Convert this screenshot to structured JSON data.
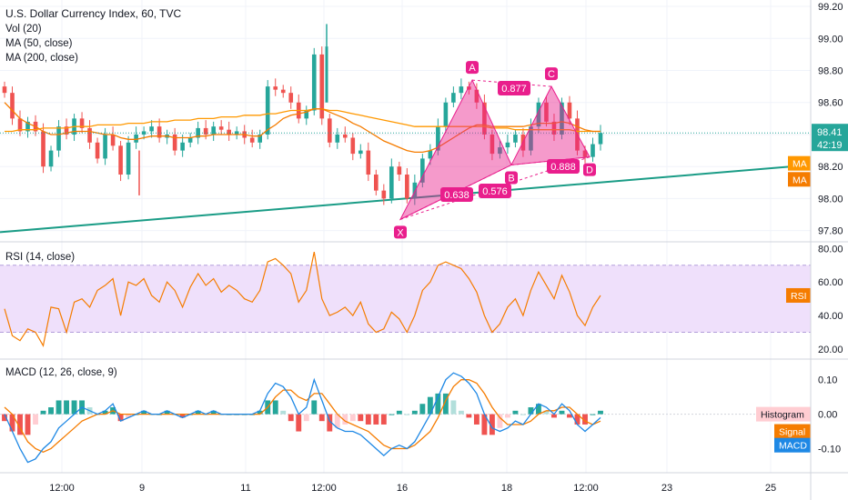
{
  "legend": {
    "symbol": "U.S. Dollar Currency Index, 60, TVC",
    "vol": "Vol (20)",
    "ma50": "MA (50, close)",
    "ma200": "MA (200, close)",
    "rsi": "RSI (14, close)",
    "macd": "MACD (12, 26, close, 9)"
  },
  "price_axis": {
    "ticks": [
      "99.20",
      "99.00",
      "98.80",
      "98.60",
      "98.40",
      "98.20",
      "98.00",
      "97.80"
    ],
    "last_price": "98.41",
    "countdown": "42:19",
    "ma_tags": [
      "MA",
      "MA"
    ]
  },
  "rsi_axis": {
    "ticks": [
      "80.00",
      "60.00",
      "40.00",
      "20.00"
    ],
    "tag": "RSI"
  },
  "macd_axis": {
    "ticks": [
      "0.10",
      "0.00",
      "-0.10"
    ],
    "tags": {
      "histogram": "Histogram",
      "signal": "Signal",
      "macd": "MACD"
    }
  },
  "time_axis": [
    "12:00",
    "9",
    "11",
    "12:00",
    "16",
    "18",
    "12:00",
    "23",
    "25"
  ],
  "pattern": {
    "points": [
      {
        "label": "X",
        "value": 97.87
      },
      {
        "label": "A",
        "value": 98.74
      },
      {
        "label": "B",
        "value": 98.21
      },
      {
        "label": "C",
        "value": 98.7
      },
      {
        "label": "D",
        "value": 98.26
      }
    ],
    "ratios": [
      "0.638",
      "0.576",
      "0.877",
      "0.888"
    ]
  },
  "colors": {
    "up": "#26a69a",
    "down": "#ef5350",
    "ma50": "#f57c00",
    "ma200": "#ff9800",
    "pattern": "#e91e8c",
    "trend": "#1a9c86",
    "rsi": "#f57c00",
    "rsi_band": "#efe0fb",
    "macd": "#1e88e5",
    "signal": "#f57c00",
    "last": "#26a69a"
  },
  "chart_data": {
    "type": "line",
    "title": "U.S. Dollar Currency Index, 60, TVC",
    "price_range": [
      97.73,
      99.24
    ],
    "rsi_range": [
      14,
      84
    ],
    "macd_range": [
      -0.17,
      0.16
    ],
    "close": [
      98.66,
      98.5,
      98.42,
      98.48,
      98.42,
      98.2,
      98.3,
      98.45,
      98.4,
      98.5,
      98.44,
      98.35,
      98.25,
      98.4,
      98.33,
      98.15,
      98.35,
      98.4,
      98.42,
      98.45,
      98.38,
      98.4,
      98.3,
      98.35,
      98.38,
      98.44,
      98.4,
      98.45,
      98.43,
      98.4,
      98.42,
      98.38,
      98.35,
      98.4,
      98.7,
      98.68,
      98.66,
      98.6,
      98.5,
      98.55,
      98.9,
      98.5,
      98.35,
      98.4,
      98.38,
      98.28,
      98.3,
      98.15,
      98.05,
      98.0,
      98.2,
      98.15,
      98.0,
      98.1,
      98.25,
      98.3,
      98.45,
      98.6,
      98.66,
      98.7,
      98.68,
      98.6,
      98.4,
      98.28,
      98.32,
      98.35,
      98.4,
      98.3,
      98.45,
      98.6,
      98.48,
      98.4,
      98.6,
      98.5,
      98.3,
      98.26,
      98.34,
      98.41
    ],
    "ma50": [
      98.6,
      98.55,
      98.5,
      98.47,
      98.45,
      98.42,
      98.4,
      98.4,
      98.41,
      98.42,
      98.42,
      98.42,
      98.41,
      98.4,
      98.4,
      98.38,
      98.37,
      98.37,
      98.38,
      98.39,
      98.39,
      98.39,
      98.38,
      98.38,
      98.38,
      98.39,
      98.39,
      98.4,
      98.4,
      98.4,
      98.4,
      98.4,
      98.39,
      98.39,
      98.43,
      98.46,
      98.5,
      98.52,
      98.53,
      98.54,
      98.56,
      98.56,
      98.54,
      98.52,
      98.5,
      98.47,
      98.45,
      98.42,
      98.39,
      98.36,
      98.34,
      98.32,
      98.3,
      98.29,
      98.29,
      98.3,
      98.32,
      98.35,
      98.38,
      98.41,
      98.44,
      98.46,
      98.46,
      98.45,
      98.45,
      98.45,
      98.45,
      98.45,
      98.46,
      98.47,
      98.47,
      98.47,
      98.48,
      98.47,
      98.45,
      98.43,
      98.42,
      98.42
    ],
    "ma200": [
      98.42,
      98.42,
      98.43,
      98.43,
      98.43,
      98.44,
      98.44,
      98.44,
      98.44,
      98.45,
      98.45,
      98.45,
      98.46,
      98.46,
      98.46,
      98.46,
      98.47,
      98.47,
      98.47,
      98.48,
      98.48,
      98.48,
      98.49,
      98.49,
      98.49,
      98.5,
      98.5,
      98.5,
      98.51,
      98.51,
      98.51,
      98.52,
      98.52,
      98.52,
      98.53,
      98.53,
      98.54,
      98.55,
      98.55,
      98.55,
      98.56,
      98.56,
      98.55,
      98.55,
      98.54,
      98.53,
      98.52,
      98.51,
      98.5,
      98.49,
      98.48,
      98.47,
      98.46,
      98.45,
      98.45,
      98.45,
      98.45,
      98.45,
      98.45,
      98.45,
      98.45,
      98.45,
      98.45,
      98.44,
      98.44,
      98.44,
      98.43,
      98.43,
      98.43,
      98.43,
      98.43,
      98.43,
      98.43,
      98.43,
      98.42,
      98.42,
      98.42,
      98.42
    ],
    "rsi": [
      44,
      28,
      25,
      32,
      30,
      22,
      45,
      44,
      30,
      48,
      50,
      45,
      55,
      58,
      62,
      40,
      60,
      58,
      62,
      52,
      48,
      60,
      55,
      45,
      57,
      65,
      58,
      62,
      54,
      58,
      55,
      50,
      48,
      55,
      72,
      74,
      70,
      65,
      48,
      55,
      78,
      50,
      40,
      42,
      45,
      40,
      48,
      35,
      30,
      32,
      42,
      38,
      30,
      40,
      55,
      60,
      70,
      72,
      70,
      68,
      62,
      54,
      40,
      30,
      35,
      45,
      50,
      40,
      55,
      66,
      58,
      50,
      64,
      54,
      40,
      34,
      45,
      52
    ],
    "macd": [
      0.0,
      -0.05,
      -0.1,
      -0.14,
      -0.13,
      -0.1,
      -0.08,
      -0.04,
      -0.02,
      0.0,
      0.02,
      0.01,
      0.0,
      0.01,
      0.03,
      -0.02,
      -0.01,
      0.0,
      0.01,
      0.0,
      0.0,
      0.01,
      0.0,
      -0.01,
      0.0,
      0.01,
      0.0,
      0.01,
      0.0,
      0.0,
      0.0,
      0.0,
      0.0,
      0.01,
      0.06,
      0.09,
      0.08,
      0.05,
      0.0,
      0.02,
      0.1,
      0.04,
      -0.02,
      -0.04,
      -0.05,
      -0.05,
      -0.06,
      -0.08,
      -0.1,
      -0.12,
      -0.1,
      -0.09,
      -0.1,
      -0.08,
      -0.04,
      0.0,
      0.05,
      0.1,
      0.12,
      0.11,
      0.09,
      0.06,
      0.0,
      -0.04,
      -0.05,
      -0.04,
      -0.02,
      -0.03,
      0.0,
      0.03,
      0.02,
      0.0,
      0.03,
      0.01,
      -0.03,
      -0.05,
      -0.03,
      -0.01
    ],
    "signal": [
      0.02,
      0.0,
      -0.04,
      -0.08,
      -0.1,
      -0.11,
      -0.1,
      -0.08,
      -0.06,
      -0.04,
      -0.02,
      -0.01,
      0.0,
      0.0,
      0.01,
      0.0,
      0.0,
      0.0,
      0.0,
      0.0,
      0.0,
      0.0,
      0.0,
      0.0,
      0.0,
      0.0,
      0.0,
      0.0,
      0.0,
      0.0,
      0.0,
      0.0,
      0.0,
      0.0,
      0.02,
      0.05,
      0.07,
      0.07,
      0.05,
      0.04,
      0.06,
      0.06,
      0.03,
      0.0,
      -0.02,
      -0.03,
      -0.04,
      -0.05,
      -0.07,
      -0.09,
      -0.1,
      -0.1,
      -0.1,
      -0.09,
      -0.07,
      -0.05,
      -0.01,
      0.04,
      0.08,
      0.1,
      0.1,
      0.09,
      0.06,
      0.02,
      -0.01,
      -0.03,
      -0.03,
      -0.03,
      -0.02,
      0.0,
      0.01,
      0.01,
      0.02,
      0.02,
      0.0,
      -0.02,
      -0.03,
      -0.02
    ],
    "histogram": [
      -0.02,
      -0.05,
      -0.06,
      -0.06,
      -0.03,
      0.01,
      0.02,
      0.04,
      0.04,
      0.04,
      0.04,
      0.02,
      0.0,
      0.01,
      0.02,
      -0.02,
      -0.01,
      0.0,
      0.01,
      0.0,
      0.0,
      0.01,
      0.0,
      -0.01,
      0.0,
      0.01,
      0.0,
      0.01,
      0.0,
      0.0,
      0.0,
      0.0,
      0.0,
      0.01,
      0.04,
      0.04,
      0.01,
      -0.02,
      -0.05,
      -0.02,
      0.04,
      -0.02,
      -0.05,
      -0.04,
      -0.03,
      -0.02,
      -0.02,
      -0.03,
      -0.03,
      -0.03,
      0.0,
      0.01,
      0.0,
      0.01,
      0.03,
      0.05,
      0.06,
      0.06,
      0.04,
      0.01,
      -0.01,
      -0.03,
      -0.06,
      -0.06,
      -0.04,
      -0.01,
      0.01,
      0.0,
      0.02,
      0.03,
      0.01,
      -0.01,
      0.01,
      -0.01,
      -0.03,
      -0.03,
      0.0,
      0.01
    ]
  }
}
